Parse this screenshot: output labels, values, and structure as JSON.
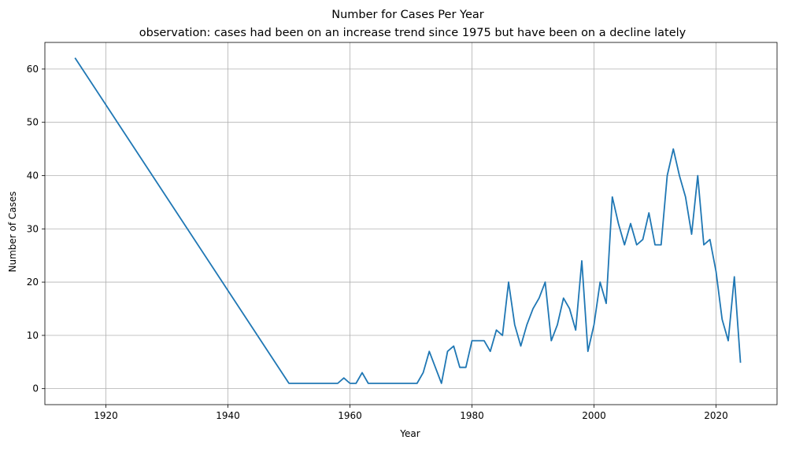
{
  "chart_data": {
    "type": "line",
    "title": "Number for Cases Per Year",
    "subtitle": "observation: cases had been on an increase trend since 1975 but have been on a decline lately",
    "xlabel": "Year",
    "ylabel": "Number of Cases",
    "xlim": [
      1910,
      2030
    ],
    "ylim": [
      -3,
      65
    ],
    "xticks": [
      1920,
      1940,
      1960,
      1980,
      2000,
      2020
    ],
    "yticks": [
      0,
      10,
      20,
      30,
      40,
      50,
      60
    ],
    "grid": true,
    "series": [
      {
        "color": "#1f77b4",
        "x": [
          1915,
          1950,
          1951,
          1952,
          1953,
          1954,
          1955,
          1956,
          1957,
          1958,
          1959,
          1960,
          1961,
          1962,
          1963,
          1964,
          1965,
          1966,
          1967,
          1968,
          1969,
          1970,
          1971,
          1972,
          1973,
          1974,
          1975,
          1976,
          1977,
          1978,
          1979,
          1980,
          1981,
          1982,
          1983,
          1984,
          1985,
          1986,
          1987,
          1988,
          1989,
          1990,
          1991,
          1992,
          1993,
          1994,
          1995,
          1996,
          1997,
          1998,
          1999,
          2000,
          2001,
          2002,
          2003,
          2004,
          2005,
          2006,
          2007,
          2008,
          2009,
          2010,
          2011,
          2012,
          2013,
          2014,
          2015,
          2016,
          2017,
          2018,
          2019,
          2020,
          2021,
          2022,
          2023,
          2024
        ],
        "y": [
          62,
          1,
          1,
          1,
          1,
          1,
          1,
          1,
          1,
          1,
          2,
          1,
          1,
          3,
          1,
          1,
          1,
          1,
          1,
          1,
          1,
          1,
          1,
          3,
          7,
          4,
          1,
          7,
          8,
          4,
          4,
          9,
          9,
          9,
          7,
          11,
          10,
          20,
          12,
          8,
          12,
          15,
          17,
          20,
          9,
          12,
          17,
          15,
          11,
          24,
          7,
          12,
          20,
          16,
          36,
          31,
          27,
          31,
          27,
          28,
          33,
          27,
          27,
          40,
          45,
          40,
          36,
          29,
          40,
          27,
          28,
          22,
          13,
          9,
          21,
          5
        ]
      }
    ]
  }
}
